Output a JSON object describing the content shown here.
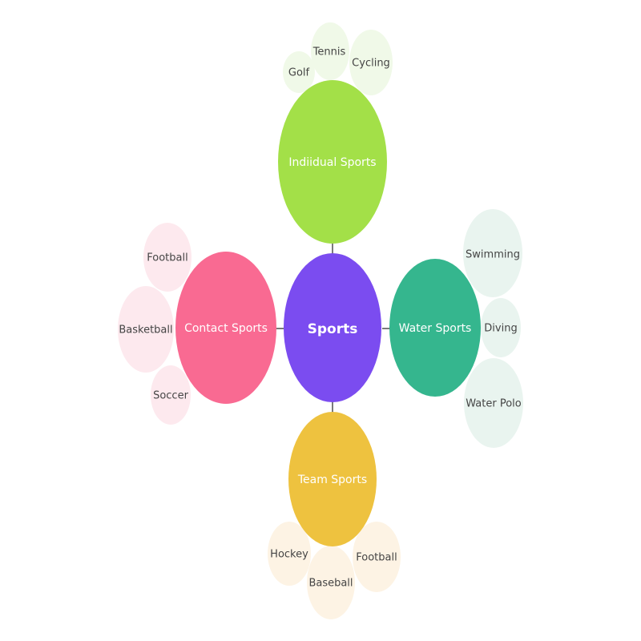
{
  "diagram": {
    "center": {
      "label": "Sports",
      "color": "#7b4cf0"
    },
    "connector_color": "#7a7a7a",
    "categories": [
      {
        "key": "individual",
        "label": "Indiidual Sports",
        "color": "#a3e048",
        "leaf_color": "#f0f9e8",
        "items": [
          "Golf",
          "Tennis",
          "Cycling"
        ]
      },
      {
        "key": "water",
        "label": "Water Sports",
        "color": "#35b68e",
        "leaf_color": "#e9f4ef",
        "items": [
          "Swimming",
          "Diving",
          "Water Polo"
        ]
      },
      {
        "key": "team",
        "label": "Team Sports",
        "color": "#eec23f",
        "leaf_color": "#fdf3e4",
        "items": [
          "Hockey",
          "Baseball",
          "Football"
        ]
      },
      {
        "key": "contact",
        "label": "Contact Sports",
        "color": "#f96a92",
        "leaf_color": "#fde9ee",
        "items": [
          "Football",
          "Basketball",
          "Soccer"
        ]
      }
    ]
  }
}
